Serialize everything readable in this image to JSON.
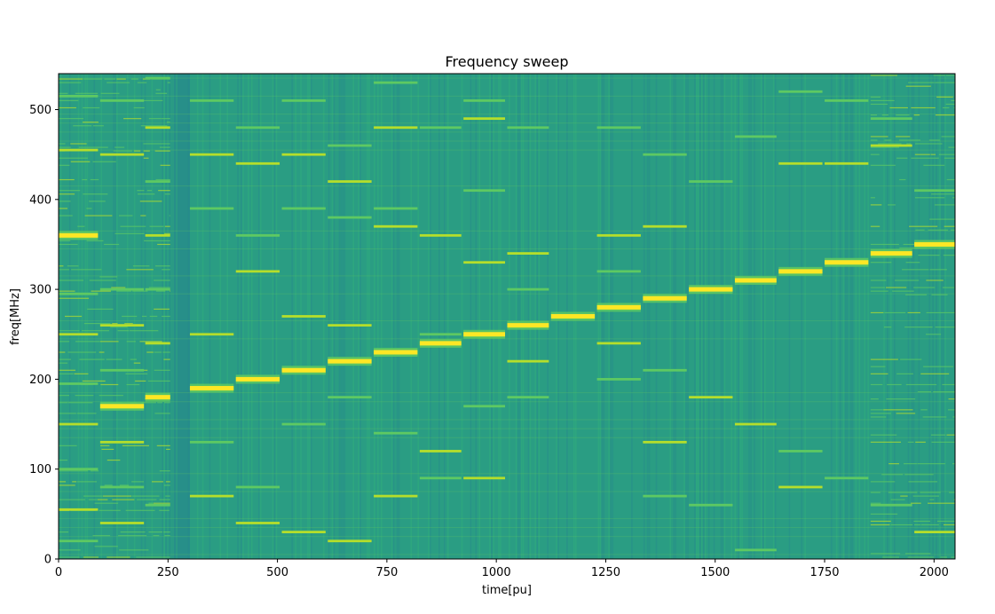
{
  "chart_data": {
    "type": "heatmap",
    "title": "Frequency sweep",
    "xlabel": "time[pu]",
    "ylabel": "freq[MHz]",
    "xlim": [
      0,
      2048
    ],
    "ylim": [
      0,
      540
    ],
    "xticks": [
      0,
      250,
      500,
      750,
      1000,
      1250,
      1500,
      1750,
      2000
    ],
    "yticks": [
      0,
      100,
      200,
      300,
      400,
      500
    ],
    "grid": false,
    "colormap": "viridis",
    "colors": {
      "background_low": "#25848e",
      "background_mid": "#2a9d83",
      "signal_mid": "#5ec962",
      "signal_high": "#fde725"
    },
    "segments": [
      {
        "t_start": 0,
        "t_end": 90,
        "main_freq": 360,
        "harmonics": [
          515,
          455,
          295,
          250,
          195,
          150,
          100,
          55,
          20
        ]
      },
      {
        "t_start": 95,
        "t_end": 195,
        "main_freq": 170,
        "harmonics": [
          510,
          450,
          300,
          260,
          210,
          130,
          80,
          40
        ]
      },
      {
        "t_start": 198,
        "t_end": 255,
        "main_freq": 180,
        "harmonics": [
          535,
          480,
          420,
          360,
          300,
          240,
          60
        ]
      },
      {
        "t_start": 300,
        "t_end": 400,
        "main_freq": 190,
        "harmonics": [
          510,
          450,
          390,
          250,
          130,
          70
        ]
      },
      {
        "t_start": 405,
        "t_end": 505,
        "main_freq": 200,
        "harmonics": [
          480,
          440,
          360,
          320,
          80,
          40
        ]
      },
      {
        "t_start": 510,
        "t_end": 610,
        "main_freq": 210,
        "harmonics": [
          510,
          450,
          390,
          270,
          150,
          30
        ]
      },
      {
        "t_start": 615,
        "t_end": 715,
        "main_freq": 220,
        "harmonics": [
          460,
          420,
          380,
          260,
          180,
          20
        ]
      },
      {
        "t_start": 720,
        "t_end": 820,
        "main_freq": 230,
        "harmonics": [
          530,
          480,
          390,
          370,
          140,
          70
        ]
      },
      {
        "t_start": 825,
        "t_end": 920,
        "main_freq": 240,
        "harmonics": [
          480,
          360,
          250,
          120,
          90
        ]
      },
      {
        "t_start": 925,
        "t_end": 1020,
        "main_freq": 250,
        "harmonics": [
          510,
          490,
          410,
          330,
          170,
          90
        ]
      },
      {
        "t_start": 1025,
        "t_end": 1120,
        "main_freq": 260,
        "harmonics": [
          480,
          340,
          300,
          220,
          180
        ]
      },
      {
        "t_start": 1125,
        "t_end": 1225,
        "main_freq": 270,
        "harmonics": []
      },
      {
        "t_start": 1230,
        "t_end": 1330,
        "main_freq": 280,
        "harmonics": [
          480,
          360,
          320,
          240,
          200
        ]
      },
      {
        "t_start": 1335,
        "t_end": 1435,
        "main_freq": 290,
        "harmonics": [
          450,
          370,
          210,
          130,
          70
        ]
      },
      {
        "t_start": 1440,
        "t_end": 1540,
        "main_freq": 300,
        "harmonics": [
          420,
          180,
          60
        ]
      },
      {
        "t_start": 1545,
        "t_end": 1640,
        "main_freq": 310,
        "harmonics": [
          470,
          150,
          10
        ]
      },
      {
        "t_start": 1645,
        "t_end": 1745,
        "main_freq": 320,
        "harmonics": [
          520,
          440,
          120,
          80
        ]
      },
      {
        "t_start": 1750,
        "t_end": 1850,
        "main_freq": 330,
        "harmonics": [
          510,
          440,
          90
        ]
      },
      {
        "t_start": 1855,
        "t_end": 1950,
        "main_freq": 340,
        "harmonics": [
          490,
          460,
          60
        ]
      },
      {
        "t_start": 1955,
        "t_end": 2048,
        "main_freq": 350,
        "harmonics": [
          410,
          30
        ]
      }
    ]
  }
}
